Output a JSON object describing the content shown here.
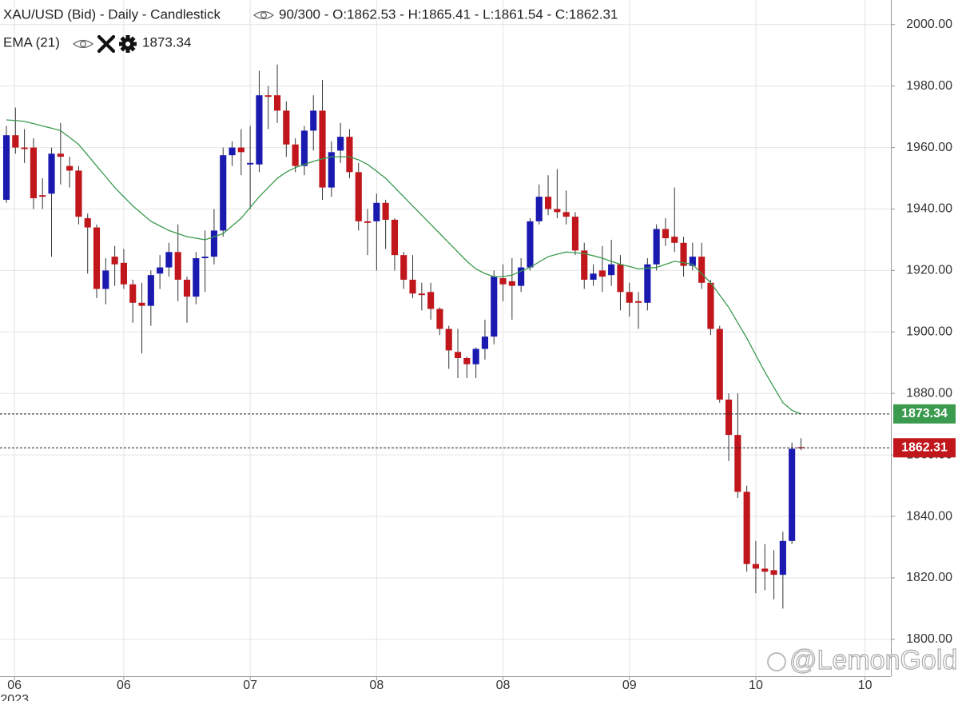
{
  "chart_data": {
    "type": "candlestick",
    "title": "XAU/USD (Bid) - Daily - Candlestick",
    "header_info": "90/300 - O:1862.53 - H:1865.41 - L:1861.54 - C:1862.31",
    "watermark": "@LemonGold",
    "up_color": "#1a1ab0",
    "down_color": "#c0161c",
    "wick_color": "#333333",
    "grid": true,
    "ylim": [
      1788,
      2008
    ],
    "yticks": [
      {
        "value": 1800,
        "label": "1800.00"
      },
      {
        "value": 1820,
        "label": "1820.00"
      },
      {
        "value": 1840,
        "label": "1840.00"
      },
      {
        "value": 1860,
        "label": "1860.00"
      },
      {
        "value": 1880,
        "label": "1880.00"
      },
      {
        "value": 1900,
        "label": "1900.00"
      },
      {
        "value": 1920,
        "label": "1920.00"
      },
      {
        "value": 1940,
        "label": "1940.00"
      },
      {
        "value": 1960,
        "label": "1960.00"
      },
      {
        "value": 1980,
        "label": "1980.00"
      },
      {
        "value": 2000,
        "label": "2000.00"
      }
    ],
    "xlim": [
      -0.71,
      97.96
    ],
    "xticks": [
      {
        "value": 0.9,
        "label": "06"
      },
      {
        "value": 13,
        "label": "06"
      },
      {
        "value": 27,
        "label": "07"
      },
      {
        "value": 41,
        "label": "08"
      },
      {
        "value": 55,
        "label": "08"
      },
      {
        "value": 69,
        "label": "09"
      },
      {
        "value": 83,
        "label": "10"
      },
      {
        "value": 95.1,
        "label": "10"
      }
    ],
    "year_label": "2023",
    "candles": {
      "open": [
        1943,
        1964,
        1960,
        1960,
        1944.5,
        1945,
        1958,
        1954,
        1952.5,
        1937,
        1934,
        1914,
        1924.5,
        1922.5,
        1915.5,
        1909.5,
        1908.5,
        1919,
        1921,
        1926,
        1917,
        1911.5,
        1924,
        1924.5,
        1933,
        1957.5,
        1960,
        1954.5,
        1954.5,
        1977,
        1977,
        1972,
        1961,
        1954,
        1965.5,
        1972,
        1947,
        1959,
        1963.5,
        1952,
        1936,
        1936,
        1942,
        1936.5,
        1925,
        1917,
        1912.5,
        1913,
        1907.5,
        1901,
        1893.5,
        1891.5,
        1889.5,
        1894.5,
        1898.5,
        1917.5,
        1916.5,
        1915,
        1921,
        1936,
        1944,
        1940,
        1939,
        1937.5,
        1926.5,
        1917,
        1920,
        1918.5,
        1922,
        1913,
        1910,
        1909.5,
        1922,
        1933.5,
        1931,
        1929,
        1921.5,
        1924.5,
        1916,
        1901,
        1878,
        1866.5,
        1848,
        1824.5,
        1823,
        1822.5,
        1821,
        1832,
        1862.53
      ],
      "high": [
        1967,
        1973,
        1966,
        1963,
        1950,
        1960,
        1968,
        1957,
        1954,
        1938.5,
        1935,
        1924,
        1928,
        1927,
        1917,
        1916,
        1920,
        1925,
        1929,
        1935,
        1918,
        1926,
        1933,
        1940,
        1960,
        1962,
        1966,
        1967,
        1985,
        1980,
        1987,
        1975,
        1963,
        1967,
        1977,
        1982,
        1962,
        1968,
        1966,
        1955,
        1940,
        1945,
        1943,
        1937,
        1926,
        1925,
        1916,
        1916,
        1908,
        1902,
        1901,
        1892,
        1895,
        1904,
        1920,
        1922,
        1924,
        1924,
        1937,
        1948,
        1951,
        1953,
        1946,
        1939,
        1929,
        1922,
        1928,
        1930,
        1925,
        1916,
        1913,
        1924,
        1935,
        1937,
        1947,
        1931,
        1929,
        1929,
        1917,
        1902,
        1880,
        1880,
        1850,
        1832,
        1831,
        1829,
        1835,
        1864,
        1865.41
      ],
      "low": [
        1942,
        1958,
        1955,
        1940,
        1940,
        1924.5,
        1948,
        1947,
        1935,
        1919,
        1911,
        1909,
        1915,
        1914,
        1903,
        1893,
        1902,
        1914,
        1918,
        1910,
        1903,
        1909,
        1913,
        1922,
        1931,
        1954,
        1951,
        1940,
        1952,
        1966,
        1968,
        1957,
        1952,
        1951,
        1959,
        1943,
        1944,
        1955,
        1950,
        1933,
        1925,
        1920,
        1927,
        1920,
        1914,
        1911,
        1907,
        1904,
        1899,
        1888,
        1885,
        1885,
        1885,
        1891,
        1896,
        1910,
        1904,
        1913,
        1920,
        1935,
        1938,
        1937,
        1935,
        1925,
        1914,
        1915,
        1913,
        1915,
        1907,
        1905,
        1901,
        1907,
        1920,
        1928,
        1926,
        1918,
        1920,
        1914,
        1899,
        1877,
        1858,
        1846,
        1822,
        1815,
        1816,
        1813,
        1810,
        1831,
        1861.54
      ],
      "close": [
        1964,
        1960,
        1959.5,
        1943.5,
        1944,
        1958,
        1957,
        1952.5,
        1937.5,
        1934,
        1914,
        1920,
        1922,
        1915.5,
        1909.5,
        1908.5,
        1918.5,
        1921,
        1926,
        1917,
        1911.5,
        1924,
        1924.5,
        1933,
        1957.5,
        1960,
        1958.5,
        1955,
        1977,
        1976.5,
        1972,
        1961,
        1954,
        1965.5,
        1972,
        1947,
        1958.5,
        1963.5,
        1952,
        1936,
        1935.5,
        1942,
        1936.5,
        1925,
        1917,
        1912.5,
        1912,
        1907.5,
        1901,
        1894,
        1891.5,
        1889.5,
        1894.5,
        1898.5,
        1918,
        1915.5,
        1915,
        1921,
        1936,
        1944,
        1940,
        1939,
        1937.5,
        1926.5,
        1917,
        1919,
        1918,
        1922,
        1913,
        1909.5,
        1909.5,
        1922,
        1933.5,
        1930.5,
        1929,
        1921.5,
        1924.5,
        1916,
        1901,
        1878,
        1866.5,
        1848,
        1824.5,
        1823,
        1822,
        1821,
        1832,
        1862,
        1862.31
      ]
    },
    "indicator": {
      "name": "EMA (21)",
      "color": "#3a9a4e",
      "value": 1873.34,
      "values": [
        1969,
        1968.8,
        1968.5,
        1967.8,
        1967,
        1966.3,
        1965.5,
        1963.3,
        1961,
        1957.5,
        1954,
        1950.5,
        1947,
        1944,
        1941,
        1938.5,
        1936,
        1934.5,
        1933,
        1932,
        1931,
        1930.5,
        1930,
        1931,
        1932,
        1934.5,
        1937,
        1940.5,
        1944,
        1947,
        1950,
        1952,
        1953.5,
        1954.5,
        1955.5,
        1956.3,
        1957,
        1957,
        1957,
        1956,
        1954.5,
        1952.3,
        1950,
        1947,
        1944,
        1941,
        1938,
        1935,
        1932,
        1929,
        1926,
        1923,
        1920.5,
        1919,
        1918,
        1918,
        1918.5,
        1919.8,
        1921,
        1922.8,
        1924.5,
        1925.3,
        1926,
        1925.8,
        1925.5,
        1924.8,
        1924,
        1923,
        1922,
        1921.3,
        1920.5,
        1920.8,
        1921,
        1922,
        1923,
        1922.5,
        1922,
        1919,
        1916,
        1912,
        1908,
        1903,
        1898,
        1892.5,
        1887,
        1882,
        1877,
        1874.5,
        1873.34
      ]
    }
  }
}
